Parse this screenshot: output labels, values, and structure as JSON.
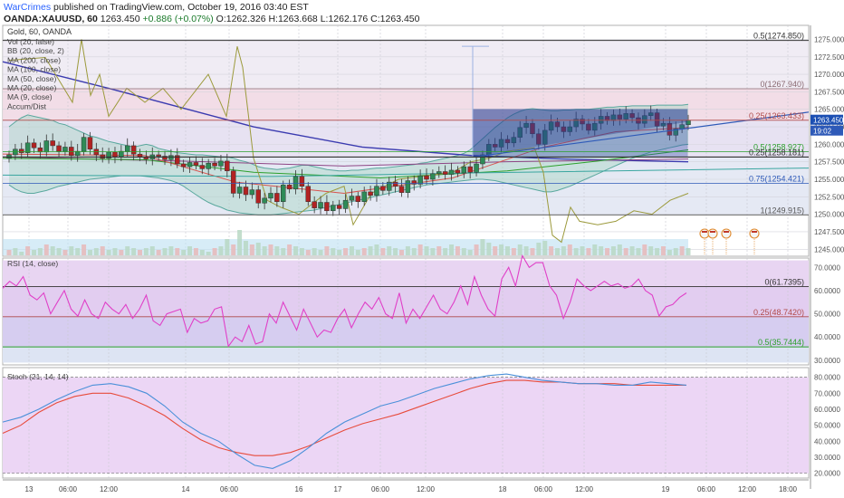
{
  "header": {
    "author": "WarCrimes",
    "published": " published on TradingView.com, October 19, 2016 03:40 EST",
    "symbol": "OANDA:XAUUSD, 60",
    "price": "1263.450",
    "change": "+0.886 (+0.07%)",
    "open": "O:1262.326",
    "high": "H:1263.668",
    "low": "L:1262.176",
    "close": "C:1263.450"
  },
  "legend": {
    "title": "Gold, 60, OANDA",
    "items": [
      "Vol (20, false)",
      "BB (20, close, 2)",
      "MA (200, close)",
      "MA (100, close)",
      "MA (50, close)",
      "MA (20, close)",
      "MA (9, close)",
      "Accum/Dist"
    ]
  },
  "rsi_label": "RSI (14, close)",
  "stoch_label": "Stoch (21, 14, 14)",
  "badges": {
    "last_price": "1263.450",
    "countdown": "19:02"
  },
  "colors": {
    "bull": "#2e8b57",
    "bear": "#b22222",
    "bb": "#5aa89e",
    "ma200": "#3b3bb0",
    "ma100": "#8e4585",
    "ma50": "#2ca02c",
    "ma20": "#d9534f",
    "accum": "#9c9a3c",
    "rsi": "#e040c8",
    "stoch_k": "#4a90d9",
    "stoch_d": "#e74c3c",
    "fib_box": "#2e4aa8"
  },
  "chart_data": [
    {
      "type": "candlestick",
      "title": "Gold, 60, OANDA",
      "ylim": [
        1244,
        1277
      ],
      "y_ticks": [
        1245,
        1247.5,
        1250,
        1252.5,
        1255,
        1257.5,
        1260,
        1262.5,
        1265,
        1267.5,
        1270,
        1272.5,
        1275
      ],
      "x_ticks": [
        "13",
        "06:00",
        "12:00",
        "14",
        "06:00",
        "16",
        "17",
        "06:00",
        "12:00",
        "18",
        "06:00",
        "12:00",
        "19",
        "06:00",
        "12:00",
        "18:00"
      ],
      "fib_levels": [
        {
          "label": "0.5(1274.850)",
          "value": 1274.85
        },
        {
          "label": "0(1267.940)",
          "value": 1267.94
        },
        {
          "label": "0.25(1263.433)",
          "value": 1263.433
        },
        {
          "label": "0.5(1258.927)",
          "value": 1258.927
        },
        {
          "label": "0.25(1258.181)",
          "value": 1258.181
        },
        {
          "label": "0.75(1254.421)",
          "value": 1254.421
        },
        {
          "label": "1(1249.915)",
          "value": 1249.915
        }
      ],
      "closes": [
        1258.5,
        1259.3,
        1258.8,
        1260.2,
        1259.5,
        1258.9,
        1260.5,
        1259.8,
        1259.0,
        1259.6,
        1258.4,
        1259.0,
        1261.0,
        1259.3,
        1258.5,
        1258.0,
        1258.9,
        1258.2,
        1259.0,
        1259.8,
        1258.6,
        1258.2,
        1257.9,
        1258.5,
        1258.3,
        1257.8,
        1258.4,
        1257.2,
        1256.8,
        1257.4,
        1257.0,
        1256.5,
        1257.3,
        1256.9,
        1257.6,
        1256.2,
        1253.0,
        1253.9,
        1252.8,
        1253.5,
        1251.6,
        1252.3,
        1253.0,
        1251.8,
        1254.2,
        1253.6,
        1255.4,
        1254.0,
        1251.8,
        1250.9,
        1251.7,
        1250.5,
        1251.3,
        1250.8,
        1252.0,
        1252.6,
        1251.8,
        1253.2,
        1252.7,
        1254.0,
        1253.4,
        1254.6,
        1254.0,
        1253.1,
        1254.8,
        1254.3,
        1255.5,
        1255.0,
        1255.8,
        1256.1,
        1255.7,
        1256.3,
        1255.9,
        1256.8,
        1256.0,
        1257.2,
        1258.5,
        1260.0,
        1259.6,
        1260.7,
        1260.2,
        1261.0,
        1262.4,
        1263.0,
        1261.5,
        1260.0,
        1262.0,
        1263.2,
        1262.5,
        1261.8,
        1262.5,
        1263.6,
        1262.9,
        1262.0,
        1263.0,
        1264.0,
        1263.4,
        1264.2,
        1263.6,
        1264.4,
        1263.8,
        1263.0,
        1264.1,
        1264.5,
        1262.6,
        1263.0,
        1261.3,
        1262.2,
        1262.8,
        1263.45
      ]
    },
    {
      "type": "line",
      "title": "RSI (14, close)",
      "ylim": [
        28,
        74
      ],
      "y_ticks": [
        30,
        40,
        50,
        60,
        70
      ],
      "fib_levels": [
        {
          "label": "0(61.7395)",
          "value": 61.7395
        },
        {
          "label": "0.25(48.7420)",
          "value": 48.742
        },
        {
          "label": "0.5(35.7444)",
          "value": 35.7444
        }
      ],
      "values": [
        61,
        64,
        62,
        66,
        58,
        56,
        59,
        50,
        55,
        60,
        52,
        49,
        56,
        50,
        48,
        55,
        52,
        50,
        54,
        48,
        52,
        58,
        47,
        45,
        50,
        51,
        52,
        42,
        48,
        46,
        47,
        52,
        53,
        36,
        40,
        38,
        45,
        37,
        38,
        50,
        46,
        55,
        49,
        43,
        52,
        46,
        40,
        43,
        42,
        48,
        52,
        44,
        50,
        55,
        52,
        57,
        50,
        48,
        59,
        46,
        52,
        48,
        53,
        58,
        52,
        50,
        55,
        62,
        54,
        66,
        58,
        52,
        49,
        65,
        70,
        62,
        75,
        70,
        72,
        72,
        62,
        58,
        48,
        55,
        65,
        62,
        60,
        62,
        64,
        62,
        63,
        61,
        62,
        65,
        60,
        58,
        49,
        53,
        54,
        57,
        59
      ]
    },
    {
      "type": "line",
      "title": "Stoch (21, 14, 14)",
      "ylim": [
        17,
        86
      ],
      "y_ticks": [
        20,
        30,
        40,
        50,
        60,
        70,
        80
      ],
      "series": [
        {
          "name": "K",
          "values": [
            52,
            55,
            60,
            66,
            71,
            75,
            76,
            74,
            70,
            62,
            52,
            45,
            40,
            32,
            25,
            23,
            28,
            36,
            45,
            52,
            57,
            62,
            65,
            69,
            73,
            76,
            79,
            81,
            82,
            80,
            78,
            77,
            76,
            76,
            75,
            75,
            77,
            76,
            75
          ]
        },
        {
          "name": "D",
          "values": [
            45,
            50,
            58,
            64,
            68,
            70,
            70,
            67,
            62,
            56,
            48,
            41,
            36,
            33,
            31,
            31,
            33,
            37,
            42,
            47,
            51,
            54,
            57,
            61,
            65,
            69,
            73,
            76,
            78,
            78,
            77,
            77,
            76,
            76,
            76,
            75,
            75,
            75,
            75
          ]
        }
      ]
    }
  ]
}
